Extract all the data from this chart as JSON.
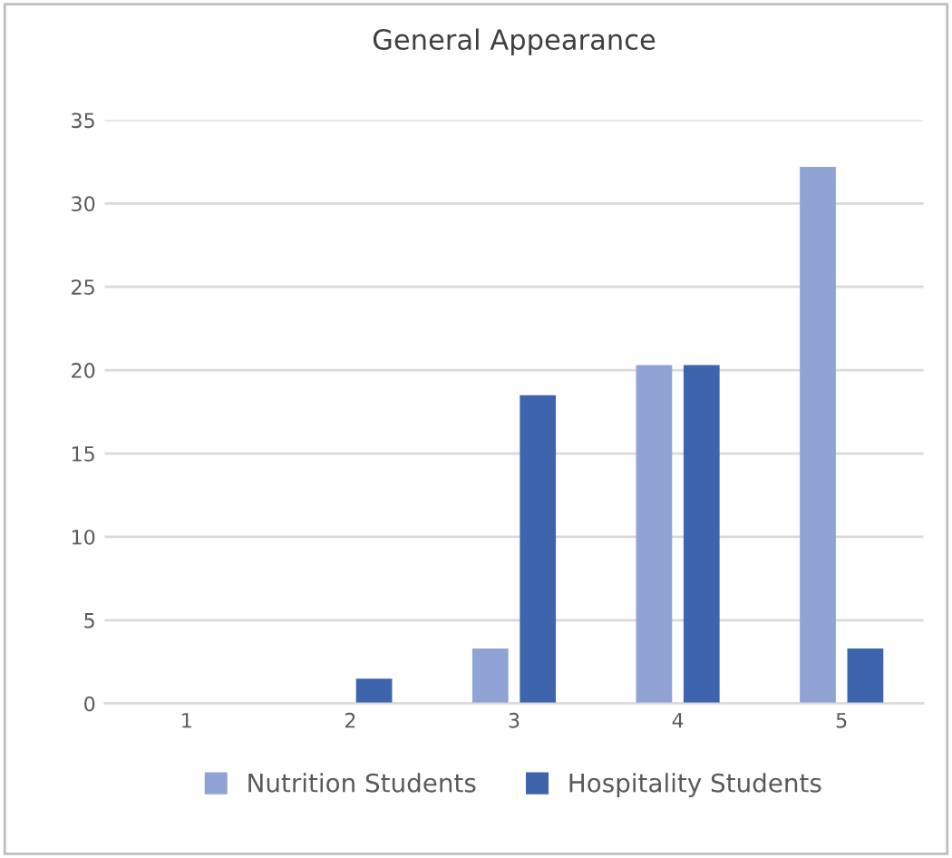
{
  "chart_data": {
    "type": "bar",
    "title": "General Appearance",
    "categories": [
      "1",
      "2",
      "3",
      "4",
      "5"
    ],
    "series": [
      {
        "name": "Nutrition Students",
        "color": "#8fa3d4",
        "values": [
          0,
          0,
          3.3,
          20.3,
          32.2
        ]
      },
      {
        "name": "Hospitality Students",
        "color": "#3d64ad",
        "values": [
          0,
          1.5,
          18.5,
          20.3,
          3.3
        ]
      }
    ],
    "ylim": [
      0,
      35
    ],
    "yticks": [
      0,
      5,
      10,
      15,
      20,
      25,
      30,
      35
    ],
    "grid": "y",
    "legend": "bottom"
  }
}
